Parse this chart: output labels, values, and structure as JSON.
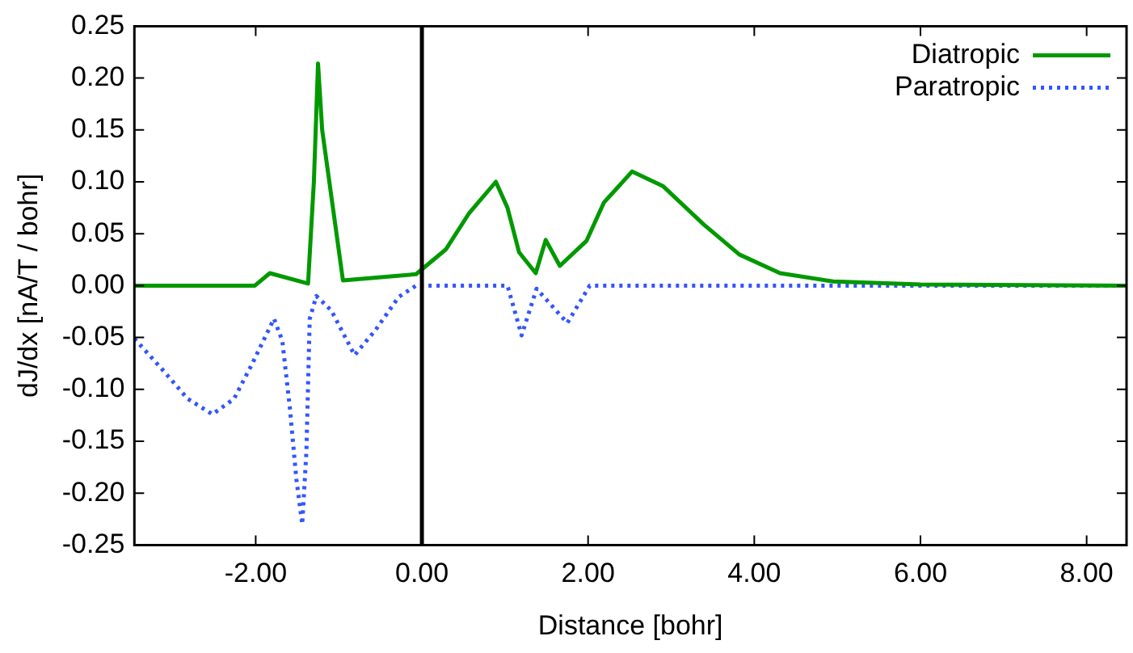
{
  "chart_data": {
    "type": "line",
    "xlabel": "Distance [bohr]",
    "ylabel": "dJ/dx [nA/T / bohr]",
    "xlim": [
      -3.46,
      8.48
    ],
    "ylim": [
      -0.25,
      0.25
    ],
    "xticks": [
      {
        "value": -2,
        "label": "-2.00"
      },
      {
        "value": 0,
        "label": "0.00"
      },
      {
        "value": 2,
        "label": "2.00"
      },
      {
        "value": 4,
        "label": "4.00"
      },
      {
        "value": 6,
        "label": "6.00"
      },
      {
        "value": 8,
        "label": "8.00"
      }
    ],
    "yticks": [
      {
        "value": -0.25,
        "label": "-0.25"
      },
      {
        "value": -0.2,
        "label": "-0.20"
      },
      {
        "value": -0.15,
        "label": "-0.15"
      },
      {
        "value": -0.1,
        "label": "-0.10"
      },
      {
        "value": -0.05,
        "label": "-0.05"
      },
      {
        "value": 0,
        "label": "0.00"
      },
      {
        "value": 0.05,
        "label": "0.05"
      },
      {
        "value": 0.1,
        "label": "0.10"
      },
      {
        "value": 0.15,
        "label": "0.15"
      },
      {
        "value": 0.2,
        "label": "0.20"
      },
      {
        "value": 0.25,
        "label": "0.25"
      }
    ],
    "grid": false,
    "legend": "top right",
    "marker": "none",
    "ref_lines": [
      {
        "axis": "x",
        "value": 0,
        "color": "#000000"
      }
    ],
    "series": [
      {
        "name": "Diatropic",
        "color": "#009900",
        "line_style": "solid",
        "x": [
          -3.46,
          -2.01,
          -1.83,
          -1.37,
          -1.3,
          -1.25,
          -1.2,
          -0.95,
          -0.07,
          0.29,
          0.57,
          0.89,
          1.03,
          1.17,
          1.37,
          1.49,
          1.66,
          1.98,
          2.19,
          2.53,
          2.9,
          3.39,
          3.82,
          4.31,
          4.95,
          6.0,
          8.48
        ],
        "values": [
          0,
          0,
          0.012,
          0.002,
          0.1,
          0.214,
          0.15,
          0.005,
          0.011,
          0.035,
          0.07,
          0.1,
          0.075,
          0.032,
          0.012,
          0.044,
          0.019,
          0.043,
          0.08,
          0.11,
          0.096,
          0.059,
          0.03,
          0.012,
          0.004,
          0.001,
          0
        ]
      },
      {
        "name": "Paratropic",
        "color": "#3355ff",
        "line_style": "dotted",
        "x": [
          -3.46,
          -3.1,
          -2.82,
          -2.52,
          -2.26,
          -2.04,
          -1.78,
          -1.68,
          -1.59,
          -1.51,
          -1.44,
          -1.39,
          -1.35,
          -1.27,
          -1.09,
          -0.81,
          -0.56,
          -0.28,
          -0.07,
          1.03,
          1.2,
          1.38,
          1.75,
          2.02,
          8.48
        ],
        "values": [
          -0.051,
          -0.083,
          -0.109,
          -0.124,
          -0.109,
          -0.075,
          -0.032,
          -0.053,
          -0.117,
          -0.187,
          -0.23,
          -0.16,
          -0.032,
          -0.01,
          -0.024,
          -0.067,
          -0.043,
          -0.011,
          0,
          0,
          -0.048,
          -0.003,
          -0.036,
          0,
          0
        ]
      }
    ]
  }
}
